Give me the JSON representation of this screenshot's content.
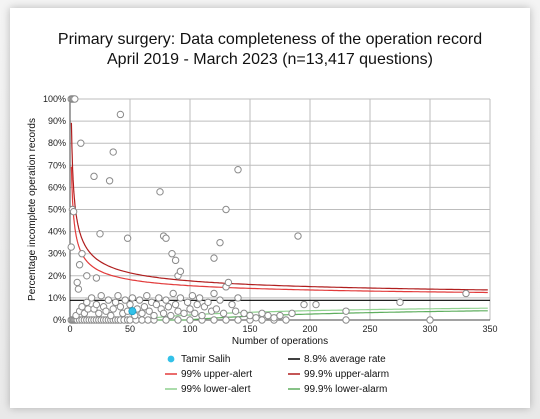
{
  "chart_data": {
    "type": "scatter",
    "title": "Primary surgery: Data completeness of the operation record",
    "subtitle": "April 2019 - March 2023 (n=13,417 questions)",
    "xlabel": "Number of operations",
    "ylabel": "Percentage incomplete operation records",
    "xlim": [
      0,
      350
    ],
    "ylim": [
      0,
      100
    ],
    "x_ticks": [
      "0",
      "50",
      "100",
      "150",
      "200",
      "250",
      "300",
      "350"
    ],
    "y_ticks": [
      "0%",
      "10%",
      "20%",
      "30%",
      "40%",
      "50%",
      "60%",
      "70%",
      "80%",
      "90%",
      "100%"
    ],
    "grid": true,
    "legend_position": "bottom",
    "average_rate": 8.9,
    "highlight": {
      "name": "Tamir Salih",
      "x": 52,
      "y": 4,
      "color": "#33c1e8"
    },
    "series": [
      {
        "name": "Units",
        "color": "#8a8a8a",
        "points": [
          [
            1,
            100
          ],
          [
            2,
            100
          ],
          [
            3,
            100
          ],
          [
            4,
            100
          ],
          [
            2,
            50
          ],
          [
            1,
            33
          ],
          [
            3,
            49
          ],
          [
            6,
            17
          ],
          [
            7,
            14
          ],
          [
            8,
            25
          ],
          [
            10,
            30
          ],
          [
            9,
            80
          ],
          [
            14,
            20
          ],
          [
            20,
            65
          ],
          [
            22,
            19
          ],
          [
            25,
            39
          ],
          [
            33,
            63
          ],
          [
            36,
            76
          ],
          [
            42,
            93
          ],
          [
            48,
            37
          ],
          [
            75,
            58
          ],
          [
            78,
            38
          ],
          [
            80,
            37
          ],
          [
            85,
            30
          ],
          [
            88,
            27
          ],
          [
            90,
            20
          ],
          [
            92,
            22
          ],
          [
            120,
            28
          ],
          [
            125,
            35
          ],
          [
            130,
            50
          ],
          [
            140,
            68
          ],
          [
            190,
            38
          ],
          [
            330,
            12
          ],
          [
            1,
            0
          ],
          [
            2,
            0
          ],
          [
            3,
            0
          ],
          [
            4,
            0
          ],
          [
            5,
            0
          ],
          [
            6,
            0
          ],
          [
            8,
            0
          ],
          [
            10,
            0
          ],
          [
            12,
            0
          ],
          [
            14,
            0
          ],
          [
            16,
            0
          ],
          [
            18,
            0
          ],
          [
            20,
            0
          ],
          [
            22,
            0
          ],
          [
            24,
            0
          ],
          [
            26,
            0
          ],
          [
            28,
            0
          ],
          [
            30,
            0
          ],
          [
            32,
            0
          ],
          [
            34,
            0
          ],
          [
            36,
            0
          ],
          [
            38,
            0
          ],
          [
            40,
            0
          ],
          [
            42,
            0
          ],
          [
            45,
            0
          ],
          [
            48,
            0
          ],
          [
            50,
            0
          ],
          [
            55,
            0
          ],
          [
            60,
            0
          ],
          [
            65,
            0
          ],
          [
            70,
            0
          ],
          [
            80,
            0
          ],
          [
            90,
            0
          ],
          [
            100,
            0
          ],
          [
            110,
            0
          ],
          [
            120,
            0
          ],
          [
            130,
            0
          ],
          [
            140,
            0
          ],
          [
            150,
            0
          ],
          [
            160,
            0
          ],
          [
            170,
            0
          ],
          [
            180,
            0
          ],
          [
            230,
            0
          ],
          [
            300,
            0
          ],
          [
            5,
            2
          ],
          [
            8,
            4
          ],
          [
            10,
            6
          ],
          [
            12,
            3
          ],
          [
            14,
            8
          ],
          [
            15,
            5
          ],
          [
            18,
            10
          ],
          [
            20,
            5
          ],
          [
            22,
            7
          ],
          [
            24,
            3
          ],
          [
            26,
            11
          ],
          [
            28,
            6
          ],
          [
            30,
            4
          ],
          [
            32,
            9
          ],
          [
            34,
            2
          ],
          [
            36,
            5
          ],
          [
            38,
            8
          ],
          [
            40,
            11
          ],
          [
            42,
            6
          ],
          [
            44,
            3
          ],
          [
            46,
            9
          ],
          [
            48,
            4
          ],
          [
            50,
            7
          ],
          [
            52,
            10
          ],
          [
            54,
            2
          ],
          [
            56,
            5
          ],
          [
            58,
            9
          ],
          [
            60,
            3
          ],
          [
            62,
            6
          ],
          [
            64,
            11
          ],
          [
            66,
            4
          ],
          [
            68,
            8
          ],
          [
            70,
            2
          ],
          [
            72,
            7
          ],
          [
            74,
            10
          ],
          [
            76,
            5
          ],
          [
            78,
            3
          ],
          [
            80,
            9
          ],
          [
            82,
            6
          ],
          [
            84,
            2
          ],
          [
            86,
            12
          ],
          [
            88,
            7
          ],
          [
            90,
            4
          ],
          [
            92,
            10
          ],
          [
            95,
            3
          ],
          [
            98,
            8
          ],
          [
            100,
            5
          ],
          [
            102,
            11
          ],
          [
            104,
            3
          ],
          [
            106,
            7
          ],
          [
            108,
            10
          ],
          [
            110,
            2
          ],
          [
            112,
            6
          ],
          [
            115,
            8
          ],
          [
            118,
            4
          ],
          [
            120,
            12
          ],
          [
            122,
            5
          ],
          [
            125,
            9
          ],
          [
            128,
            3
          ],
          [
            130,
            15
          ],
          [
            132,
            17
          ],
          [
            135,
            7
          ],
          [
            138,
            4
          ],
          [
            140,
            10
          ],
          [
            145,
            3
          ],
          [
            150,
            2
          ],
          [
            155,
            1
          ],
          [
            160,
            3
          ],
          [
            165,
            2
          ],
          [
            170,
            1
          ],
          [
            175,
            2
          ],
          [
            185,
            3
          ],
          [
            195,
            7
          ],
          [
            205,
            7
          ],
          [
            230,
            4
          ],
          [
            275,
            8
          ]
        ]
      },
      {
        "name": "8.9% average rate",
        "color": "#000000",
        "value": 8.9
      },
      {
        "name": "99% upper-alert",
        "color": "#e23b3b",
        "z": 2.326
      },
      {
        "name": "99.9% upper-alarm",
        "color": "#b01e1e",
        "z": 3.09
      },
      {
        "name": "99% lower-alert",
        "color": "#8fd18f",
        "z": 2.326
      },
      {
        "name": "99.9% lower-alarm",
        "color": "#5fae5f",
        "z": 3.09
      }
    ],
    "legend": [
      {
        "label": "Tamir Salih",
        "kind": "dot",
        "color": "#33c1e8"
      },
      {
        "label": "8.9% average rate",
        "kind": "line",
        "color": "#000000"
      },
      {
        "label": "99% upper-alert",
        "kind": "line",
        "color": "#e23b3b"
      },
      {
        "label": "99.9% upper-alarm",
        "kind": "line",
        "color": "#b01e1e"
      },
      {
        "label": "99% lower-alert",
        "kind": "line",
        "color": "#8fd18f"
      },
      {
        "label": "99.9% lower-alarm",
        "kind": "line",
        "color": "#5fae5f"
      }
    ]
  }
}
